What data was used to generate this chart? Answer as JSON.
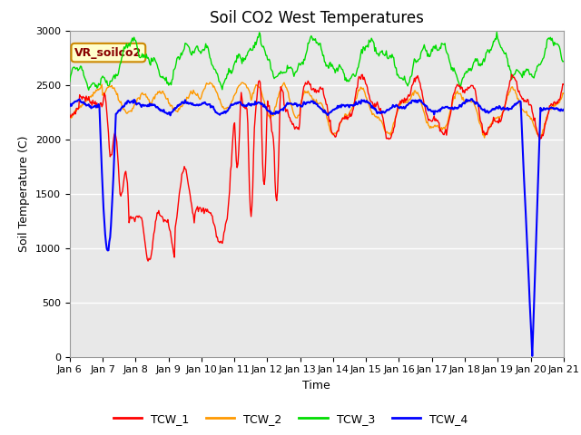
{
  "title": "Soil CO2 West Temperatures",
  "xlabel": "Time",
  "ylabel": "Soil Temperature (C)",
  "ylim": [
    0,
    3000
  ],
  "yticks": [
    0,
    500,
    1000,
    1500,
    2000,
    2500,
    3000
  ],
  "x_tick_labels": [
    "Jan 6",
    "Jan 7",
    "Jan 8",
    "Jan 9",
    "Jan 10",
    "Jan 11",
    "Jan 12",
    "Jan 13",
    "Jan 14",
    "Jan 15",
    "Jan 16",
    "Jan 17",
    "Jan 18",
    "Jan 19",
    "Jan 20",
    "Jan 21"
  ],
  "legend_labels": [
    "TCW_1",
    "TCW_2",
    "TCW_3",
    "TCW_4"
  ],
  "line_colors": [
    "#ff0000",
    "#ff9900",
    "#00dd00",
    "#0000ff"
  ],
  "annotation_text": "VR_soilco2",
  "annotation_box_facecolor": "#ffffcc",
  "annotation_box_edgecolor": "#cc8800",
  "plot_bg": "#e8e8e8",
  "grid_color": "#ffffff",
  "title_fontsize": 12,
  "axis_fontsize": 9,
  "tick_fontsize": 8
}
